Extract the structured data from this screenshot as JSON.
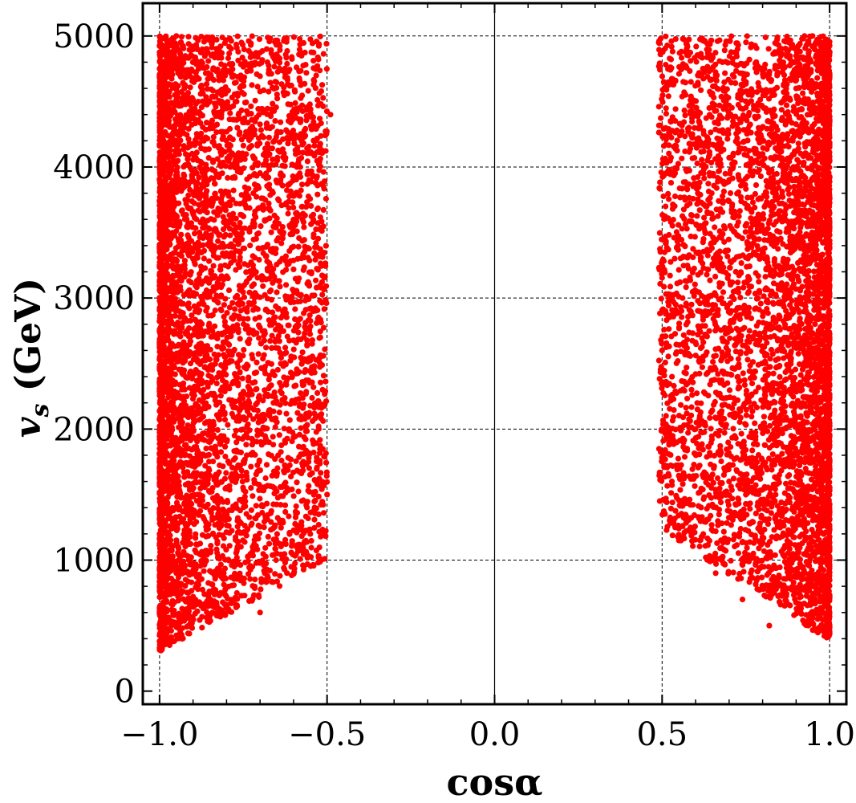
{
  "chart_data": {
    "type": "scatter",
    "title": "",
    "xlabel": "cosα",
    "ylabel": "v_s (GeV)",
    "ylabel_main": "v",
    "ylabel_sub": "s",
    "ylabel_unit": " (GeV)",
    "xlim": [
      -1.05,
      1.05
    ],
    "ylim": [
      -100,
      5250
    ],
    "x_ticks": [
      -1.0,
      -0.5,
      0.0,
      0.5,
      1.0
    ],
    "x_tick_labels": [
      "−1.0",
      "−0.5",
      "0.0",
      "0.5",
      "1.0"
    ],
    "y_ticks": [
      0,
      1000,
      2000,
      3000,
      4000,
      5000
    ],
    "y_tick_labels": [
      "0",
      "1000",
      "2000",
      "3000",
      "4000",
      "5000"
    ],
    "grid": true,
    "grid_style": "dashed",
    "marker_color": "#ff0000",
    "series": [
      {
        "regions": [
          {
            "x_range": [
              -1.0,
              -0.58
            ],
            "y_range": [
              300,
              5000
            ],
            "density": "high near x=-1, decreasing toward x=-0.58"
          },
          {
            "x_range": [
              -0.58,
              -0.48
            ],
            "y_range": [
              850,
              5000
            ],
            "density": "sparse"
          },
          {
            "x_range": [
              0.58,
              1.0
            ],
            "y_range": [
              400,
              5000
            ],
            "density": "high near x=1, decreasing toward x=0.58"
          },
          {
            "x_range": [
              0.48,
              0.58
            ],
            "y_range": [
              1100,
              5000
            ],
            "density": "sparse"
          }
        ],
        "x": [
          -1.0,
          -0.98,
          -0.95,
          -0.93,
          -0.9,
          -0.88,
          -0.85,
          -0.82,
          -0.8,
          -0.77,
          -0.74,
          -0.72,
          -0.7,
          -0.68,
          -0.66,
          -0.63,
          -0.6,
          -0.58,
          -0.55,
          -0.52,
          -0.5,
          -0.49,
          0.49,
          0.5,
          0.52,
          0.55,
          0.58,
          0.6,
          0.63,
          0.66,
          0.68,
          0.7,
          0.72,
          0.74,
          0.77,
          0.8,
          0.82,
          0.85,
          0.88,
          0.9,
          0.93,
          0.95,
          0.98,
          1.0
        ],
        "y": [
          330,
          450,
          900,
          2000,
          3300,
          4000,
          4700,
          3100,
          2500,
          4500,
          1800,
          3800,
          600,
          4900,
          2200,
          3500,
          950,
          4000,
          1200,
          2700,
          1500,
          4400,
          4950,
          2600,
          3000,
          1150,
          4300,
          2000,
          3700,
          900,
          4800,
          1600,
          3200,
          700,
          2400,
          4100,
          500,
          3600,
          1300,
          4600,
          2900,
          800,
          3900,
          450
        ]
      }
    ]
  }
}
